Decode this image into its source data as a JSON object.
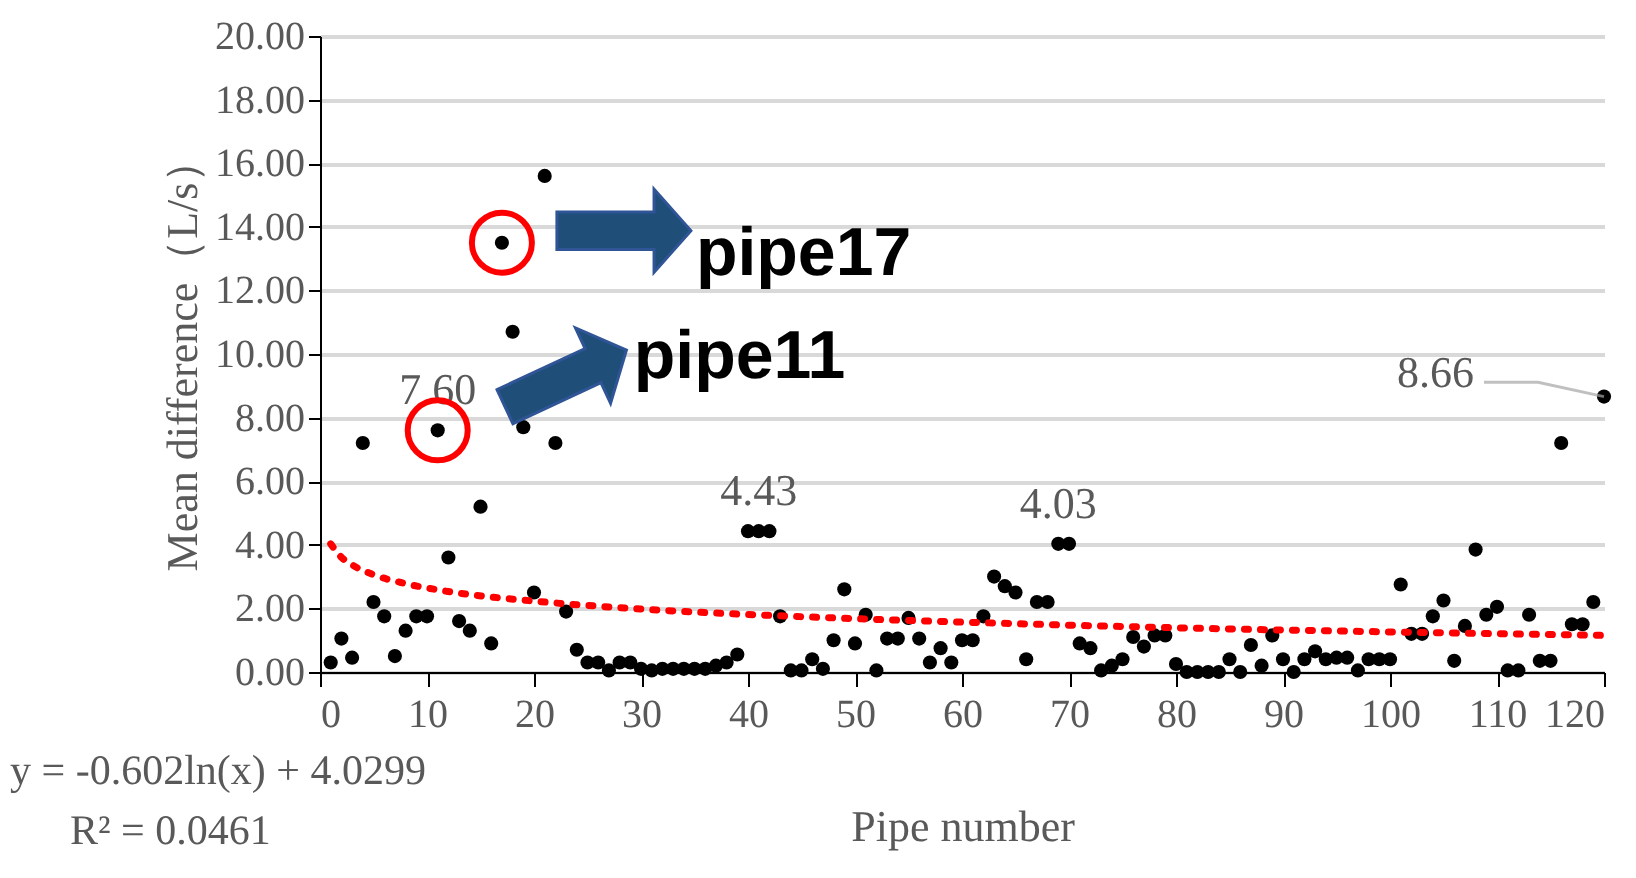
{
  "chart_data": {
    "type": "scatter",
    "xlabel": "Pipe number",
    "ylabel": "Mean difference（L/s）",
    "xlim": [
      0,
      120
    ],
    "xticks": [
      0,
      10,
      20,
      30,
      40,
      50,
      60,
      70,
      80,
      90,
      100,
      110,
      120
    ],
    "ylim": [
      0,
      20
    ],
    "yticks": [
      {
        "value": 0,
        "label": "0.00"
      },
      {
        "value": 2,
        "label": "2.00"
      },
      {
        "value": 4,
        "label": "4.00"
      },
      {
        "value": 6,
        "label": "6.00"
      },
      {
        "value": 8,
        "label": "8.00"
      },
      {
        "value": 10,
        "label": "10.00"
      },
      {
        "value": 12,
        "label": "12.00"
      },
      {
        "value": 14,
        "label": "14.00"
      },
      {
        "value": 16,
        "label": "16.00"
      },
      {
        "value": 18,
        "label": "18.00"
      },
      {
        "value": 20,
        "label": "20.00"
      }
    ],
    "grid": "y",
    "series": [
      {
        "color": "#000000",
        "marker": "circle",
        "x": [
          1,
          2,
          3,
          4,
          5,
          6,
          7,
          8,
          9,
          10,
          11,
          12,
          13,
          14,
          15,
          16,
          17,
          18,
          19,
          20,
          21,
          22,
          23,
          24,
          25,
          26,
          27,
          28,
          29,
          30,
          31,
          32,
          33,
          34,
          35,
          36,
          37,
          38,
          39,
          40,
          41,
          42,
          43,
          44,
          45,
          46,
          47,
          48,
          49,
          50,
          51,
          52,
          53,
          54,
          55,
          56,
          57,
          58,
          59,
          60,
          61,
          62,
          63,
          64,
          65,
          66,
          67,
          68,
          69,
          70,
          71,
          72,
          73,
          74,
          75,
          76,
          77,
          78,
          79,
          80,
          81,
          82,
          83,
          84,
          85,
          86,
          87,
          88,
          89,
          90,
          91,
          92,
          93,
          94,
          95,
          96,
          97,
          98,
          99,
          100,
          101,
          102,
          103,
          104,
          105,
          106,
          107,
          108,
          109,
          110,
          111,
          112,
          113,
          114,
          115,
          116,
          117,
          118,
          119,
          120
        ],
        "values": [
          0.3,
          1.05,
          0.45,
          7.2,
          2.2,
          1.75,
          0.5,
          1.3,
          1.75,
          1.75,
          7.6,
          3.6,
          1.6,
          1.3,
          5.2,
          0.9,
          13.5,
          10.7,
          7.7,
          2.5,
          15.6,
          7.2,
          1.9,
          0.7,
          0.3,
          0.3,
          0.05,
          0.3,
          0.3,
          0.1,
          0.05,
          0.1,
          0.1,
          0.1,
          0.1,
          0.1,
          0.2,
          0.3,
          0.55,
          4.43,
          4.43,
          4.43,
          1.75,
          0.05,
          0.05,
          0.4,
          0.1,
          1.0,
          2.6,
          0.9,
          1.8,
          0.05,
          1.05,
          1.05,
          1.7,
          1.05,
          0.3,
          0.75,
          0.3,
          1.0,
          1.0,
          1.75,
          3.0,
          2.7,
          2.5,
          0.4,
          2.2,
          2.2,
          4.03,
          4.03,
          0.9,
          0.75,
          0.05,
          0.2,
          0.4,
          1.1,
          0.8,
          1.15,
          1.15,
          0.25,
          0,
          0,
          0,
          0,
          0.4,
          0,
          0.85,
          0.2,
          1.15,
          0.4,
          0,
          0.4,
          0.65,
          0.4,
          0.45,
          0.45,
          0.05,
          0.4,
          0.4,
          0.4,
          2.75,
          1.2,
          1.2,
          1.75,
          2.25,
          0.35,
          1.45,
          3.85,
          1.8,
          2.05,
          0.05,
          0.05,
          1.8,
          0.35,
          0.35,
          7.2,
          1.5,
          1.5,
          2.2,
          8.66
        ],
        "value_labels": [
          null,
          null,
          null,
          null,
          null,
          null,
          null,
          null,
          null,
          null,
          "7.60",
          null,
          null,
          null,
          null,
          null,
          null,
          null,
          null,
          null,
          null,
          null,
          null,
          null,
          null,
          null,
          null,
          null,
          null,
          null,
          null,
          null,
          null,
          null,
          null,
          null,
          null,
          null,
          null,
          null,
          "4.43",
          null,
          null,
          null,
          null,
          null,
          null,
          null,
          null,
          null,
          null,
          null,
          null,
          null,
          null,
          null,
          null,
          null,
          null,
          null,
          null,
          null,
          null,
          null,
          null,
          null,
          null,
          null,
          "4.03",
          null,
          null,
          null,
          null,
          null,
          null,
          null,
          null,
          null,
          null,
          null,
          null,
          null,
          null,
          null,
          null,
          null,
          null,
          null,
          null,
          null,
          null,
          null,
          null,
          null,
          null,
          null,
          null,
          null,
          null,
          null,
          null,
          null,
          null,
          null,
          null,
          null,
          null,
          null,
          null,
          null,
          null,
          null,
          null,
          null,
          null,
          null,
          null,
          null,
          null,
          "8.66"
        ]
      },
      {
        "type": "line",
        "color": "#ff0000",
        "line_style": "dotted",
        "marker": "none",
        "x": [
          1,
          2,
          3,
          5,
          8,
          12,
          20,
          30,
          45,
          60,
          80,
          100,
          120
        ],
        "values": [
          4.03,
          3.61,
          3.37,
          3.06,
          2.78,
          2.53,
          2.23,
          1.98,
          1.74,
          1.57,
          1.39,
          1.26,
          1.15
        ]
      }
    ],
    "annotations": [
      {
        "text": "pipe17",
        "x": 17,
        "y": 13.5
      },
      {
        "text": "pipe11",
        "x": 11,
        "y": 7.6
      },
      "y = -0.602ln(x) + 4.0299",
      "R² = 0.0461"
    ]
  }
}
